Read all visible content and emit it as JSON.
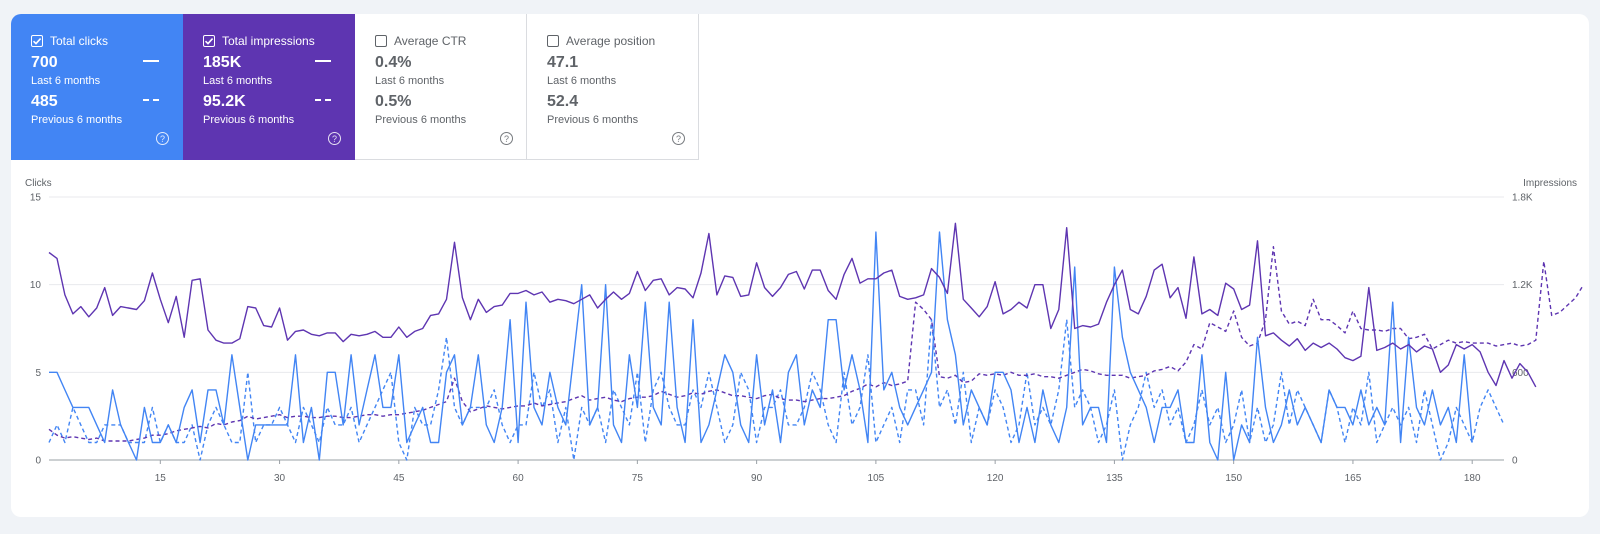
{
  "cards": [
    {
      "label": "Total clicks",
      "checked": true,
      "bg": "#4285f4",
      "value": "700",
      "period": "Last 6 months",
      "prev_value": "485",
      "prev_period": "Previous 6 months"
    },
    {
      "label": "Total impressions",
      "checked": true,
      "bg": "#5e35b1",
      "value": "185K",
      "period": "Last 6 months",
      "prev_value": "95.2K",
      "prev_period": "Previous 6 months"
    },
    {
      "label": "Average CTR",
      "checked": false,
      "bg": "#ffffff",
      "value": "0.4%",
      "period": "Last 6 months",
      "prev_value": "0.5%",
      "prev_period": "Previous 6 months"
    },
    {
      "label": "Average position",
      "checked": false,
      "bg": "#ffffff",
      "value": "47.1",
      "period": "Last 6 months",
      "prev_value": "52.4",
      "prev_period": "Previous 6 months"
    }
  ],
  "chart_data": {
    "type": "line",
    "ylabel_left": "Clicks",
    "ylabel_right": "Impressions",
    "xlim": [
      1,
      184
    ],
    "ylim_left": [
      0,
      15
    ],
    "ylim_right": [
      0,
      1800
    ],
    "x_ticks": [
      15,
      30,
      45,
      60,
      75,
      90,
      105,
      120,
      135,
      150,
      165,
      180
    ],
    "y_ticks_left": [
      "0",
      "5",
      "10",
      "15"
    ],
    "y_ticks_right": [
      "0",
      "600",
      "1.2K",
      "1.8K"
    ],
    "grid": true,
    "colors": {
      "clicks": "#4285f4",
      "impressions": "#5e35b1"
    },
    "series": [
      {
        "name": "Total clicks",
        "axis": "left",
        "style": "solid",
        "color": "#4285f4",
        "x_start": 1,
        "values": [
          5,
          5,
          4,
          3,
          3,
          3,
          2,
          1,
          4,
          2,
          1,
          0,
          3,
          1,
          1,
          2,
          1,
          3,
          4,
          1,
          4,
          4,
          2,
          6,
          3,
          0,
          2,
          2,
          2,
          2,
          2,
          6,
          1,
          3,
          0,
          5,
          5,
          2,
          6,
          2,
          4,
          6,
          3,
          3,
          6,
          1,
          2,
          3,
          1,
          1,
          5,
          6,
          2,
          3,
          6,
          2,
          1,
          3,
          8,
          1,
          9,
          3,
          2,
          5,
          3,
          2,
          6,
          10,
          2,
          3,
          10,
          2,
          1,
          6,
          3,
          9,
          3,
          2,
          9,
          3,
          1,
          8,
          1,
          2,
          4,
          6,
          5,
          2,
          1,
          6,
          2,
          4,
          1,
          5,
          6,
          2,
          4,
          3,
          8,
          8,
          4,
          6,
          4,
          1,
          13,
          4,
          5,
          3,
          2,
          3,
          4,
          5,
          13,
          8,
          6,
          2,
          4,
          3,
          2,
          5,
          5,
          4,
          1,
          3,
          1,
          4,
          2,
          1,
          3,
          11,
          2,
          3,
          3,
          1,
          11,
          7,
          5,
          4,
          3,
          1,
          3,
          3,
          4,
          1,
          1,
          6,
          1,
          0,
          5,
          0,
          2,
          1,
          7,
          3,
          1,
          2,
          4,
          2,
          3,
          2,
          1,
          4,
          3,
          3,
          2,
          4,
          2,
          3,
          2,
          9,
          1,
          7,
          3,
          2,
          4,
          2,
          3,
          1,
          6,
          1
        ]
      },
      {
        "name": "Previous clicks",
        "axis": "left",
        "style": "dashed",
        "color": "#4285f4",
        "x_start": 1,
        "values": [
          1,
          2,
          1,
          3,
          2,
          1,
          1,
          2,
          2,
          2,
          1,
          1,
          1,
          3,
          1,
          2,
          1,
          1,
          2,
          0,
          2,
          3,
          2,
          1,
          1,
          5,
          1,
          2,
          2,
          3,
          2,
          1,
          3,
          2,
          1,
          3,
          2,
          2,
          3,
          1,
          2,
          3,
          4,
          5,
          1,
          0,
          3,
          2,
          2,
          4,
          7,
          3,
          2,
          3,
          3,
          3,
          4,
          2,
          1,
          2,
          2,
          5,
          3,
          4,
          1,
          3,
          0,
          3,
          2,
          3,
          1,
          4,
          3,
          2,
          5,
          1,
          4,
          5,
          3,
          2,
          2,
          4,
          3,
          5,
          3,
          1,
          2,
          5,
          4,
          1,
          3,
          3,
          4,
          2,
          2,
          3,
          5,
          4,
          2,
          1,
          5,
          2,
          3,
          6,
          1,
          2,
          3,
          1,
          4,
          4,
          2,
          8,
          3,
          4,
          2,
          5,
          1,
          3,
          2,
          4,
          3,
          1,
          2,
          5,
          2,
          3,
          2,
          4,
          8,
          3,
          4,
          3,
          1,
          2,
          4,
          0,
          2,
          3,
          5,
          3,
          4,
          2,
          3,
          1,
          2,
          4,
          2,
          3,
          1,
          2,
          4,
          1,
          3,
          1,
          2,
          5,
          2,
          4,
          3,
          2,
          1,
          4,
          3,
          1,
          3,
          2,
          5,
          1,
          2,
          3,
          2,
          3,
          1,
          4,
          2,
          0,
          1,
          3,
          2,
          1,
          3,
          4,
          3,
          2
        ]
      },
      {
        "name": "Total impressions",
        "axis": "right",
        "style": "solid",
        "color": "#5e35b1",
        "x_start": 1,
        "values": [
          1420,
          1380,
          1130,
          1000,
          1050,
          980,
          1040,
          1180,
          990,
          1050,
          1040,
          1030,
          1090,
          1280,
          1100,
          940,
          1120,
          840,
          1230,
          1240,
          890,
          820,
          800,
          800,
          830,
          1050,
          1040,
          920,
          910,
          1040,
          820,
          880,
          890,
          860,
          850,
          870,
          870,
          810,
          860,
          850,
          860,
          880,
          840,
          840,
          910,
          840,
          880,
          900,
          990,
          1000,
          1100,
          1490,
          1110,
          960,
          1100,
          1010,
          1050,
          1060,
          1140,
          1140,
          1160,
          1130,
          1150,
          1080,
          1100,
          1090,
          1070,
          1100,
          1130,
          1040,
          1100,
          1150,
          1100,
          1140,
          1290,
          1160,
          1230,
          1240,
          1130,
          1180,
          1170,
          1110,
          1280,
          1550,
          1130,
          1260,
          1250,
          1120,
          1130,
          1350,
          1180,
          1120,
          1180,
          1270,
          1290,
          1170,
          1300,
          1300,
          1160,
          1100,
          1270,
          1380,
          1210,
          1240,
          1240,
          1280,
          1300,
          1120,
          1100,
          1110,
          1130,
          1310,
          1250,
          1140,
          1620,
          1100,
          1040,
          980,
          1050,
          1220,
          1000,
          1030,
          1080,
          1040,
          1200,
          1200,
          900,
          1030,
          1590,
          900,
          920,
          910,
          930,
          1080,
          1200,
          1300,
          1030,
          1000,
          1120,
          1300,
          1340,
          1110,
          1180,
          970,
          1390,
          1000,
          1030,
          990,
          1210,
          1170,
          1030,
          1060,
          1500,
          850,
          870,
          820,
          780,
          830,
          750,
          800,
          770,
          800,
          760,
          700,
          680,
          710,
          1180,
          750,
          770,
          800,
          760,
          790,
          740,
          780,
          760,
          600,
          650,
          790,
          760,
          790,
          740,
          600,
          510,
          680,
          560,
          660,
          600,
          500
        ]
      },
      {
        "name": "Previous impressions",
        "axis": "right",
        "style": "dashed",
        "color": "#5e35b1",
        "x_start": 1,
        "values": [
          210,
          170,
          150,
          160,
          150,
          140,
          150,
          130,
          130,
          130,
          130,
          140,
          150,
          170,
          170,
          180,
          200,
          210,
          220,
          230,
          220,
          250,
          240,
          260,
          270,
          300,
          280,
          290,
          300,
          310,
          290,
          300,
          300,
          290,
          290,
          300,
          300,
          290,
          290,
          300,
          310,
          310,
          300,
          310,
          310,
          320,
          330,
          340,
          360,
          380,
          400,
          560,
          400,
          330,
          350,
          370,
          360,
          350,
          360,
          370,
          370,
          390,
          370,
          380,
          390,
          400,
          420,
          440,
          410,
          420,
          430,
          410,
          400,
          420,
          430,
          430,
          440,
          470,
          450,
          430,
          440,
          460,
          450,
          470,
          480,
          460,
          440,
          440,
          430,
          420,
          440,
          450,
          420,
          410,
          410,
          400,
          410,
          420,
          420,
          430,
          440,
          470,
          490,
          520,
          500,
          530,
          510,
          520,
          540,
          1080,
          1030,
          960,
          570,
          560,
          580,
          530,
          540,
          590,
          580,
          590,
          580,
          600,
          580,
          580,
          590,
          570,
          570,
          560,
          580,
          600,
          620,
          610,
          590,
          580,
          580,
          580,
          560,
          570,
          580,
          610,
          620,
          640,
          610,
          670,
          790,
          760,
          940,
          910,
          880,
          1020,
          840,
          780,
          800,
          960,
          1460,
          1020,
          930,
          950,
          920,
          1100,
          960,
          960,
          920,
          870,
          1020,
          900,
          890,
          890,
          880,
          900,
          900,
          830,
          840,
          860,
          760,
          790,
          820,
          800,
          810,
          800,
          800,
          800,
          780,
          790,
          800,
          780,
          790,
          820,
          1360,
          990,
          1010,
          1060,
          1110,
          1200
        ]
      }
    ]
  }
}
